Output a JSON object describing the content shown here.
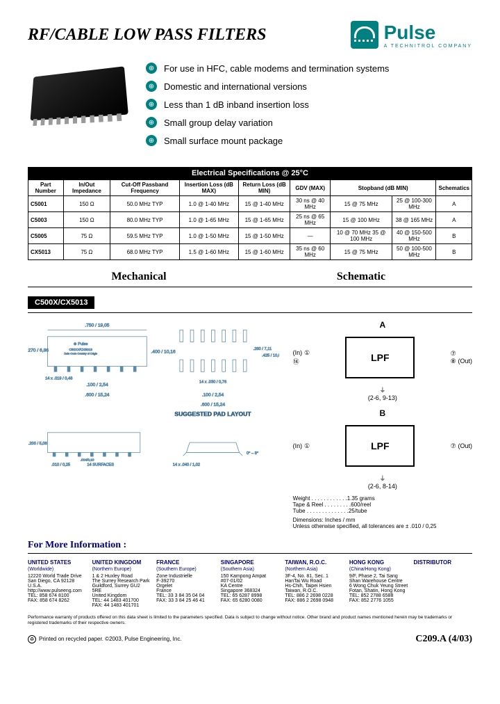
{
  "title": "RF/CABLE LOW PASS FILTERS",
  "logo": {
    "name": "Pulse",
    "tagline": "A TECHNITROL COMPANY"
  },
  "features": [
    "For use in HFC, cable modems and termination systems",
    "Domestic and international versions",
    "Less than 1 dB inband insertion loss",
    "Small group delay variation",
    "Small surface mount package"
  ],
  "spec_title": "Electrical Specifications @ 25°C",
  "spec_headers": [
    "Part Number",
    "In/Out Impedance",
    "Cut-Off Passband Frequency",
    "Insertion Loss (dB MAX)",
    "Return Loss (dB MIN)",
    "GDV (MAX)",
    "Stopband (dB MIN)",
    "",
    "Schematics"
  ],
  "spec_rows": [
    {
      "part": "C5001",
      "imp": "150 Ω",
      "freq": "50.0 MHz TYP",
      "il": "1.0 @ 1-40 MHz",
      "rl": "15 @ 1-40 MHz",
      "gdv": "30 ns @ 40 MHz",
      "sb1": "15 @ 75 MHz",
      "sb2": "25 @ 100-300 MHz",
      "sch": "A"
    },
    {
      "part": "C5003",
      "imp": "150 Ω",
      "freq": "80.0 MHz TYP",
      "il": "1.0 @ 1-65 MHz",
      "rl": "15 @ 1-65 MHz",
      "gdv": "25 ns @ 65 MHz",
      "sb1": "15 @ 100 MHz",
      "sb2": "38 @ 165 MHz",
      "sch": "A"
    },
    {
      "part": "C5005",
      "imp": "75 Ω",
      "freq": "59.5 MHz TYP",
      "il": "1.0 @ 1-50 MHz",
      "rl": "15 @ 1-50 MHz",
      "gdv": "—",
      "sb1": "10 @ 70 MHz   35 @ 100 MHz",
      "sb2": "40 @ 150-500 MHz",
      "sch": "B"
    },
    {
      "part": "CX5013",
      "imp": "75 Ω",
      "freq": "68.0 MHz TYP",
      "il": "1.5 @ 1-60 MHz",
      "rl": "15 @ 1-60 MHz",
      "gdv": "35 ns @ 60 MHz",
      "sb1": "15 @ 75 MHz",
      "sb2": "50 @ 100-500 MHz",
      "sch": "B"
    }
  ],
  "sections": {
    "mech": "Mechanical",
    "schem": "Schematic"
  },
  "model": "C500X/CX5013",
  "mech_dims": {
    "width": ".750 / 19,05",
    "height": ".270 / 6,86",
    "pin_pitch": ".100 / 2,54",
    "body_w": ".600 / 15,24",
    "pad_h": ".400 / 10,16",
    "pad_w1": ".280 / 7,11",
    "pad_w2": ".425 / 10,80",
    "pad_pin": "14 x .030 / 0,76",
    "side_h": ".200 / 5,08",
    "lead": ".010 / 0,25",
    "surf": "14 SURFACES",
    "tol": ".004/0,10",
    "foot": "14 x .040 / 1,02",
    "angle": "0° – 8°",
    "layout_title": "SUGGESTED PAD LAYOUT",
    "pin14": "14 x .019 / 0,48"
  },
  "schematic": {
    "a": {
      "label": "A",
      "box": "LPF",
      "in": "(In)",
      "out": "(Out)",
      "pins_in": [
        "1",
        "14"
      ],
      "pins_out": [
        "7",
        "8"
      ],
      "ground": "(2-6, 9-13)"
    },
    "b": {
      "label": "B",
      "box": "LPF",
      "in": "(In)",
      "out": "(Out)",
      "pins_in": [
        "1"
      ],
      "pins_out": [
        "7"
      ],
      "ground": "(2-6, 8-14)"
    },
    "weight": "Weight . . . . . . . . . . . .1.35 grams",
    "tape": "Tape & Reel . . . . . . . . .600/reel",
    "tube": "Tube . . . . . . . . . . . . . .25/tube",
    "dim_note": "Dimensions: Inches / mm",
    "tol_note": "Unless otherwise specified, all tolerances are ± .010 / 0,25"
  },
  "more_info": "For More Information :",
  "contacts": [
    {
      "title": "UNITED STATES",
      "sub": "(Worldwide)",
      "lines": [
        "12220 World Trade Drive",
        "San Diego, CA 92128",
        "U.S.A.",
        "http://www.pulseeng.com",
        "TEL: 858 674 8100",
        "FAX: 858 674 8262"
      ]
    },
    {
      "title": "UNITED KINGDOM",
      "sub": "(Northern Europe)",
      "lines": [
        "1 & 2 Huxley Road",
        "The Surrey Research Park",
        "Guildford, Surrey GU2 5RE",
        "United Kingdom",
        "TEL: 44 1483 401700",
        "FAX: 44 1483 401701"
      ]
    },
    {
      "title": "FRANCE",
      "sub": "(Southern Europe)",
      "lines": [
        "Zone Industrielle",
        "F-39270",
        "Orgelet",
        "France",
        "TEL: 33 3 84 35 04 04",
        "FAX: 33 3 84 25 46 41"
      ]
    },
    {
      "title": "SINGAPORE",
      "sub": "(Southern Asia)",
      "lines": [
        "150 Kampong Ampat",
        "#07-01/02",
        "KA Centre",
        "Singapore 368324",
        "TEL: 65 6287 8998",
        "FAX: 65 6280 0080"
      ]
    },
    {
      "title": "TAIWAN, R.O.C.",
      "sub": "(Northern Asia)",
      "lines": [
        "3F-4, No. 81, Sec. 1",
        "HanTai Wu Road",
        "Hs-Chih, Taipei Hsien",
        "Taiwan, R.O.C.",
        "TEL: 886 2 2698 0228",
        "FAX: 886 2 2698 0948"
      ]
    },
    {
      "title": "HONG KONG",
      "sub": "(China/Hong Kong)",
      "lines": [
        "9/F, Phase 2, Tai Sang",
        "Shan Warehouse Centre",
        "6 Wong Chuk Yeung Street",
        "Fotan, Shatin, Hong Kong",
        "TEL: 852 2788 6588",
        "FAX: 852 2776 1055"
      ]
    },
    {
      "title": "DISTRIBUTOR",
      "sub": "",
      "lines": []
    }
  ],
  "disclaimer": "Performance warranty of products offered on this data sheet is limited to the parameters specified. Data is subject to change without notice. Other brand and product names mentioned herein may be trademarks or registered trademarks of their respective owners.",
  "footer": {
    "left": "Printed on recycled paper. ©2003, Pulse Engineering, Inc.",
    "right": "C209.A (4/03)"
  }
}
